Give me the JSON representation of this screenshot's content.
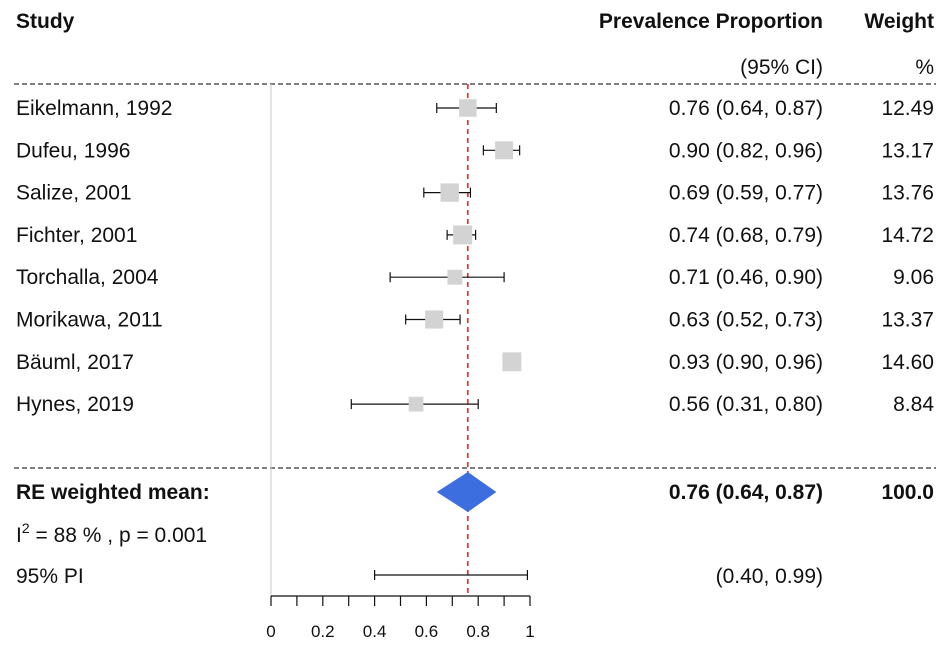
{
  "chart_data": {
    "type": "forest",
    "headers": {
      "study": "Study",
      "prevalence": "Prevalence Proportion",
      "ci": "(95% CI)",
      "weight": "Weight",
      "weight_unit": "%"
    },
    "studies": [
      {
        "label": "Eikelmann, 1992",
        "estimate": 0.76,
        "lower": 0.64,
        "upper": 0.87,
        "ci_text": "0.76 (0.64, 0.87)",
        "weight": 12.49,
        "weight_text": "12.49"
      },
      {
        "label": "Dufeu, 1996",
        "estimate": 0.9,
        "lower": 0.82,
        "upper": 0.96,
        "ci_text": "0.90 (0.82, 0.96)",
        "weight": 13.17,
        "weight_text": "13.17"
      },
      {
        "label": "Salize, 2001",
        "estimate": 0.69,
        "lower": 0.59,
        "upper": 0.77,
        "ci_text": "0.69 (0.59, 0.77)",
        "weight": 13.76,
        "weight_text": "13.76"
      },
      {
        "label": "Fichter, 2001",
        "estimate": 0.74,
        "lower": 0.68,
        "upper": 0.79,
        "ci_text": "0.74 (0.68, 0.79)",
        "weight": 14.72,
        "weight_text": "14.72"
      },
      {
        "label": "Torchalla, 2004",
        "estimate": 0.71,
        "lower": 0.46,
        "upper": 0.9,
        "ci_text": "0.71 (0.46, 0.90)",
        "weight": 9.06,
        "weight_text": "9.06"
      },
      {
        "label": "Morikawa, 2011",
        "estimate": 0.63,
        "lower": 0.52,
        "upper": 0.73,
        "ci_text": "0.63 (0.52, 0.73)",
        "weight": 13.37,
        "weight_text": "13.37"
      },
      {
        "label": "Bäuml, 2017",
        "estimate": 0.93,
        "lower": 0.9,
        "upper": 0.96,
        "ci_text": "0.93 (0.90, 0.96)",
        "weight": 14.6,
        "weight_text": "14.60"
      },
      {
        "label": "Hynes, 2019",
        "estimate": 0.56,
        "lower": 0.31,
        "upper": 0.8,
        "ci_text": "0.56 (0.31, 0.80)",
        "weight": 8.84,
        "weight_text": "8.84"
      }
    ],
    "summary": {
      "label": "RE weighted mean:",
      "estimate": 0.76,
      "lower": 0.64,
      "upper": 0.87,
      "ci_text": "0.76 (0.64, 0.87)",
      "weight_text": "100.0"
    },
    "heterogeneity": {
      "i2_prefix": "I",
      "i2_sup": "2",
      "i2_rest": " = 88 % , p = 0.001"
    },
    "prediction_interval": {
      "label": "95% PI",
      "lower": 0.4,
      "upper": 0.99,
      "text": "(0.40, 0.99)"
    },
    "x_axis": {
      "range": [
        0,
        1
      ],
      "ticks": [
        0,
        0.2,
        0.4,
        0.6,
        0.8,
        1
      ],
      "tick_labels": [
        "0",
        "0.2",
        "0.4",
        "0.6",
        "0.8",
        "1"
      ],
      "minor_step": 0.1
    },
    "reference_line": 0.76,
    "colors": {
      "square": "#d3d3d3",
      "diamond": "#3c6ee0",
      "reference": "#e02020",
      "lines": "#111111",
      "zero_line": "#c8c8c8"
    }
  }
}
